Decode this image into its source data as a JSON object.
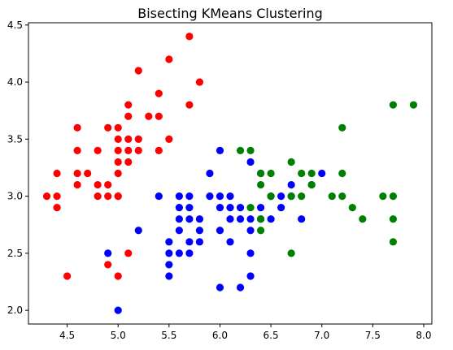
{
  "chart_data": {
    "type": "scatter",
    "title": "Bisecting KMeans Clustering",
    "xlabel": "",
    "ylabel": "",
    "xlim": [
      4.12,
      8.08
    ],
    "ylim": [
      1.88,
      4.52
    ],
    "x_ticks": [
      "4.5",
      "5.0",
      "5.5",
      "6.0",
      "6.5",
      "7.0",
      "7.5",
      "8.0"
    ],
    "y_ticks": [
      "2.0",
      "2.5",
      "3.0",
      "3.5",
      "4.0",
      "4.5"
    ],
    "grid": false,
    "legend": "none",
    "series": [
      {
        "color": "#ff0000",
        "points": [
          [
            4.3,
            3.0
          ],
          [
            4.4,
            2.9
          ],
          [
            4.4,
            3.0
          ],
          [
            4.4,
            3.2
          ],
          [
            4.5,
            2.3
          ],
          [
            4.6,
            3.1
          ],
          [
            4.6,
            3.2
          ],
          [
            4.6,
            3.4
          ],
          [
            4.6,
            3.6
          ],
          [
            4.7,
            3.2
          ],
          [
            4.8,
            3.0
          ],
          [
            4.8,
            3.1
          ],
          [
            4.8,
            3.4
          ],
          [
            4.9,
            3.0
          ],
          [
            4.9,
            3.1
          ],
          [
            4.9,
            3.6
          ],
          [
            5.0,
            3.0
          ],
          [
            5.0,
            3.2
          ],
          [
            5.0,
            3.3
          ],
          [
            5.0,
            3.4
          ],
          [
            5.0,
            3.5
          ],
          [
            5.0,
            3.6
          ],
          [
            5.1,
            3.3
          ],
          [
            5.1,
            3.4
          ],
          [
            5.1,
            3.5
          ],
          [
            5.1,
            3.7
          ],
          [
            5.1,
            3.8
          ],
          [
            5.2,
            3.4
          ],
          [
            5.2,
            3.5
          ],
          [
            5.2,
            4.1
          ],
          [
            5.3,
            3.7
          ],
          [
            5.4,
            3.4
          ],
          [
            5.4,
            3.7
          ],
          [
            5.4,
            3.9
          ],
          [
            5.5,
            3.5
          ],
          [
            5.5,
            4.2
          ],
          [
            5.7,
            3.8
          ],
          [
            5.7,
            4.4
          ],
          [
            5.8,
            4.0
          ],
          [
            4.9,
            2.4
          ],
          [
            5.0,
            2.3
          ],
          [
            5.1,
            2.5
          ],
          [
            5.0,
            3.0
          ]
        ]
      },
      {
        "color": "#0000ff",
        "points": [
          [
            4.9,
            2.5
          ],
          [
            5.0,
            2.0
          ],
          [
            5.2,
            2.7
          ],
          [
            5.4,
            3.0
          ],
          [
            5.5,
            2.3
          ],
          [
            5.5,
            2.4
          ],
          [
            5.5,
            2.5
          ],
          [
            5.5,
            2.6
          ],
          [
            5.6,
            2.5
          ],
          [
            5.6,
            2.7
          ],
          [
            5.6,
            2.8
          ],
          [
            5.6,
            2.9
          ],
          [
            5.6,
            3.0
          ],
          [
            5.7,
            2.5
          ],
          [
            5.7,
            2.6
          ],
          [
            5.7,
            2.8
          ],
          [
            5.7,
            2.9
          ],
          [
            5.7,
            3.0
          ],
          [
            5.8,
            2.6
          ],
          [
            5.8,
            2.7
          ],
          [
            5.8,
            2.8
          ],
          [
            5.9,
            3.0
          ],
          [
            5.9,
            3.2
          ],
          [
            6.0,
            2.2
          ],
          [
            6.0,
            2.7
          ],
          [
            6.0,
            2.9
          ],
          [
            6.0,
            3.0
          ],
          [
            6.0,
            3.4
          ],
          [
            6.1,
            2.6
          ],
          [
            6.1,
            2.8
          ],
          [
            6.1,
            2.9
          ],
          [
            6.1,
            3.0
          ],
          [
            6.2,
            2.2
          ],
          [
            6.2,
            2.8
          ],
          [
            6.2,
            2.9
          ],
          [
            6.3,
            2.3
          ],
          [
            6.3,
            2.5
          ],
          [
            6.3,
            2.7
          ],
          [
            6.3,
            2.8
          ],
          [
            6.3,
            3.3
          ],
          [
            6.4,
            2.9
          ],
          [
            6.4,
            3.2
          ],
          [
            6.5,
            2.8
          ],
          [
            6.6,
            2.9
          ],
          [
            6.6,
            3.0
          ],
          [
            6.7,
            3.0
          ],
          [
            6.7,
            3.1
          ],
          [
            6.8,
            2.8
          ],
          [
            6.9,
            3.1
          ],
          [
            7.0,
            3.2
          ],
          [
            6.4,
            2.8
          ],
          [
            6.5,
            3.0
          ]
        ]
      },
      {
        "color": "#008000",
        "points": [
          [
            6.2,
            3.4
          ],
          [
            6.3,
            2.9
          ],
          [
            6.3,
            3.4
          ],
          [
            6.4,
            2.7
          ],
          [
            6.4,
            2.8
          ],
          [
            6.4,
            3.1
          ],
          [
            6.4,
            3.2
          ],
          [
            6.5,
            3.0
          ],
          [
            6.5,
            3.2
          ],
          [
            6.7,
            2.5
          ],
          [
            6.7,
            3.0
          ],
          [
            6.7,
            3.3
          ],
          [
            6.8,
            3.0
          ],
          [
            6.8,
            3.2
          ],
          [
            6.9,
            3.1
          ],
          [
            6.9,
            3.2
          ],
          [
            7.1,
            3.0
          ],
          [
            7.2,
            3.0
          ],
          [
            7.2,
            3.2
          ],
          [
            7.2,
            3.6
          ],
          [
            7.3,
            2.9
          ],
          [
            7.4,
            2.8
          ],
          [
            7.6,
            3.0
          ],
          [
            7.7,
            2.6
          ],
          [
            7.7,
            2.8
          ],
          [
            7.7,
            3.0
          ],
          [
            7.7,
            3.8
          ],
          [
            7.9,
            3.8
          ]
        ]
      }
    ]
  }
}
